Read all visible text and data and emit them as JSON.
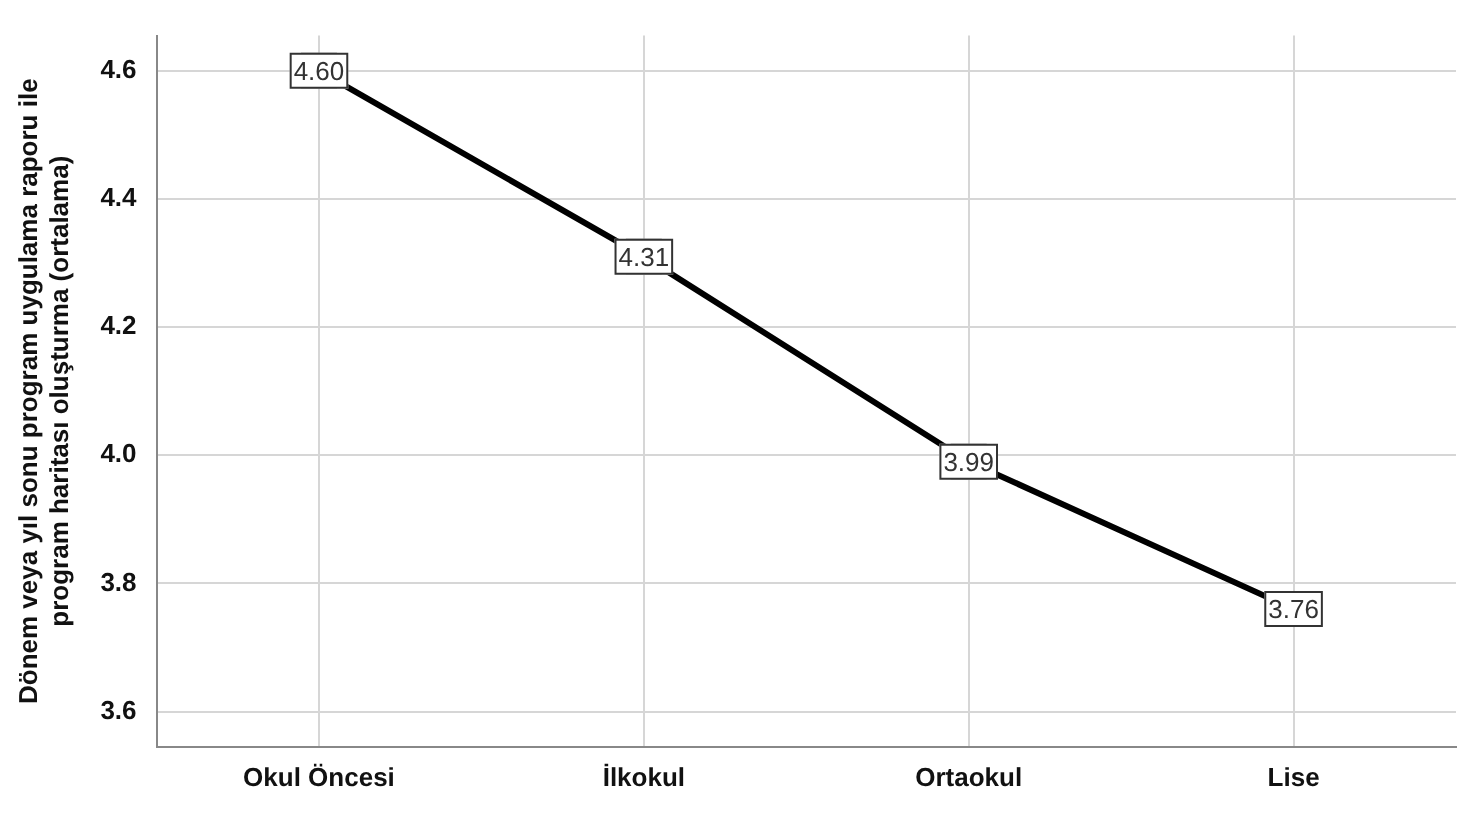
{
  "chart_data": {
    "type": "line",
    "ylabel": "Dönem veya yıl sonu program uygulama raporu ile program haritası oluşturma (ortalama)",
    "categories": [
      "Okul Öncesi",
      "İlkokul",
      "Ortaokul",
      "Lise"
    ],
    "series": [
      {
        "color": "#000000",
        "values": [
          4.6,
          4.31,
          3.99,
          3.76
        ]
      }
    ],
    "ylim": [
      3.545,
      4.655
    ],
    "yticks": [
      {
        "value": 3.6,
        "label": "3.6"
      },
      {
        "value": 3.8,
        "label": "3.8"
      },
      {
        "value": 4.0,
        "label": "4.0"
      },
      {
        "value": 4.2,
        "label": "4.2"
      },
      {
        "value": 4.4,
        "label": "4.4"
      },
      {
        "value": 4.6,
        "label": "4.6"
      }
    ],
    "value_labels": [
      "4.60",
      "4.31",
      "3.99",
      "3.76"
    ],
    "grid": true,
    "legend": false,
    "marker": "square",
    "line_style": "solid"
  }
}
